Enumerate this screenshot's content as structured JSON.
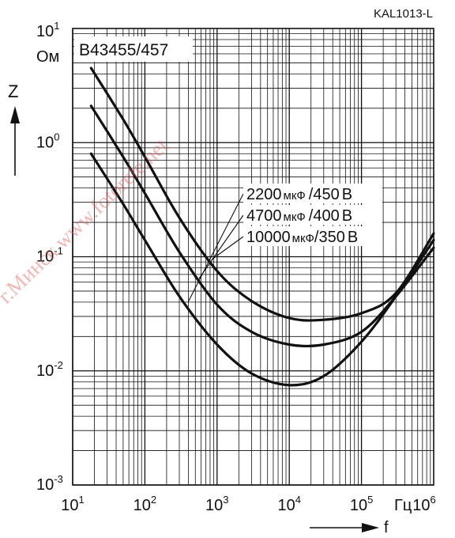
{
  "chart_data": {
    "type": "line",
    "code": "KAL1013-L",
    "title": "B43455/457",
    "ylabel": "Z",
    "yunit": "Ом",
    "xlabel": "f",
    "xunit": "Гц",
    "xscale": "log",
    "yscale": "log",
    "xlim": [
      10,
      1000000
    ],
    "ylim": [
      0.001,
      10
    ],
    "grid": true,
    "x_ticks": [
      {
        "base": "10",
        "exp": "1"
      },
      {
        "base": "10",
        "exp": "2"
      },
      {
        "base": "10",
        "exp": "3"
      },
      {
        "base": "10",
        "exp": "4"
      },
      {
        "base": "10",
        "exp": "5"
      },
      {
        "base": "10",
        "exp": "6"
      }
    ],
    "y_ticks": [
      {
        "base": "10",
        "exp": "1"
      },
      {
        "base": "10",
        "exp": "0"
      },
      {
        "base": "10",
        "exp": "-1"
      },
      {
        "base": "10",
        "exp": "-2"
      },
      {
        "base": "10",
        "exp": "-3"
      }
    ],
    "series": [
      {
        "name": "2200 мкФ /450 В",
        "cap": "2200",
        "cap_unit": "мкФ",
        "volt": "/450",
        "volt_unit": "В",
        "points": [
          [
            18,
            4.5
          ],
          [
            50,
            1.6
          ],
          [
            100,
            0.75
          ],
          [
            300,
            0.22
          ],
          [
            1000,
            0.075
          ],
          [
            3000,
            0.041
          ],
          [
            10000,
            0.029
          ],
          [
            30000,
            0.028
          ],
          [
            100000,
            0.032
          ],
          [
            300000,
            0.048
          ],
          [
            1000000,
            0.16
          ]
        ]
      },
      {
        "name": "4700 мкФ /400 В",
        "cap": "4700",
        "cap_unit": "мкФ",
        "volt": "/400",
        "volt_unit": "В",
        "points": [
          [
            18,
            2.1
          ],
          [
            50,
            0.75
          ],
          [
            100,
            0.36
          ],
          [
            300,
            0.11
          ],
          [
            1000,
            0.038
          ],
          [
            3000,
            0.022
          ],
          [
            10000,
            0.017
          ],
          [
            30000,
            0.017
          ],
          [
            100000,
            0.022
          ],
          [
            300000,
            0.045
          ],
          [
            1000000,
            0.12
          ]
        ]
      },
      {
        "name": "10000 мкФ/350 В",
        "cap": "10000",
        "cap_unit": "мкФ",
        "volt": "/350",
        "volt_unit": "В",
        "points": [
          [
            18,
            0.8
          ],
          [
            50,
            0.29
          ],
          [
            100,
            0.14
          ],
          [
            300,
            0.045
          ],
          [
            1000,
            0.017
          ],
          [
            3000,
            0.0095
          ],
          [
            10000,
            0.0075
          ],
          [
            30000,
            0.009
          ],
          [
            100000,
            0.018
          ],
          [
            300000,
            0.045
          ],
          [
            1000000,
            0.14
          ]
        ]
      }
    ]
  },
  "watermark": "г.Минск www.fotorele.net"
}
